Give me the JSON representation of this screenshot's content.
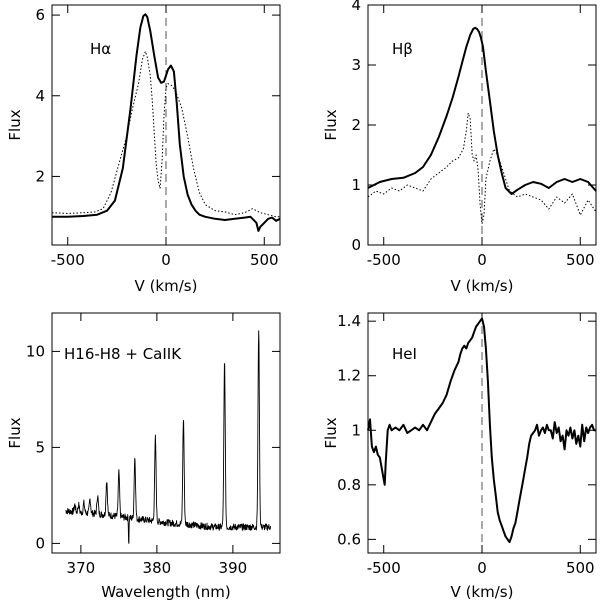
{
  "chart_data": [
    {
      "id": "halpha",
      "type": "line",
      "title": "Hα",
      "xlabel": "V (km/s)",
      "ylabel": "Flux",
      "xlim": [
        -580,
        580
      ],
      "ylim": [
        0.3,
        6.25
      ],
      "xticks": [
        -500,
        0,
        500
      ],
      "yticks": [
        2,
        4,
        6
      ],
      "ytick_labels": [
        "2",
        "4",
        "6"
      ],
      "vline": 0,
      "series": [
        {
          "name": "solid",
          "style": "solid",
          "x": [
            -580,
            -500,
            -420,
            -350,
            -300,
            -260,
            -220,
            -180,
            -150,
            -130,
            -115,
            -105,
            -95,
            -80,
            -60,
            -40,
            -25,
            -10,
            0,
            10,
            25,
            40,
            55,
            70,
            90,
            110,
            130,
            150,
            170,
            200,
            250,
            300,
            350,
            400,
            430,
            460,
            470,
            480,
            490,
            500,
            520,
            540,
            560,
            580
          ],
          "y": [
            1.0,
            1.0,
            1.02,
            1.05,
            1.15,
            1.4,
            2.2,
            3.7,
            5.0,
            5.7,
            5.98,
            6.02,
            5.95,
            5.6,
            5.0,
            4.45,
            4.32,
            4.35,
            4.5,
            4.65,
            4.75,
            4.6,
            3.8,
            2.8,
            2.0,
            1.55,
            1.3,
            1.15,
            1.05,
            1.0,
            0.95,
            0.92,
            0.95,
            0.98,
            1.0,
            0.85,
            0.65,
            0.75,
            0.8,
            0.85,
            0.95,
            0.98,
            0.9,
            0.95
          ]
        },
        {
          "name": "dotted",
          "style": "dotted",
          "x": [
            -580,
            -500,
            -420,
            -360,
            -320,
            -280,
            -240,
            -200,
            -170,
            -140,
            -120,
            -105,
            -95,
            -80,
            -70,
            -60,
            -50,
            -40,
            -30,
            -20,
            -10,
            0,
            10,
            30,
            50,
            80,
            110,
            140,
            170,
            200,
            250,
            300,
            350,
            400,
            440,
            480,
            520,
            560,
            580
          ],
          "y": [
            1.1,
            1.08,
            1.1,
            1.12,
            1.2,
            1.6,
            2.3,
            3.0,
            3.7,
            4.3,
            4.9,
            5.1,
            4.95,
            4.5,
            3.9,
            3.1,
            2.3,
            1.9,
            1.7,
            2.4,
            3.5,
            4.2,
            4.3,
            4.25,
            4.1,
            3.7,
            3.0,
            2.2,
            1.6,
            1.3,
            1.15,
            1.12,
            1.05,
            1.1,
            1.2,
            1.1,
            1.05,
            1.0,
            1.0
          ]
        }
      ]
    },
    {
      "id": "hbeta",
      "type": "line",
      "title": "Hβ",
      "xlabel": "V (km/s)",
      "ylabel": "Flux",
      "xlim": [
        -580,
        580
      ],
      "ylim": [
        0,
        4
      ],
      "xticks": [
        -500,
        0,
        500
      ],
      "yticks": [
        0,
        1,
        2,
        3,
        4
      ],
      "ytick_labels": [
        "0",
        "1",
        "2",
        "3",
        "4"
      ],
      "vline": 0,
      "series": [
        {
          "name": "solid",
          "style": "solid",
          "x": [
            -580,
            -520,
            -460,
            -400,
            -340,
            -300,
            -260,
            -220,
            -180,
            -150,
            -120,
            -100,
            -80,
            -60,
            -45,
            -35,
            -25,
            -15,
            -5,
            5,
            20,
            40,
            60,
            80,
            100,
            120,
            150,
            180,
            220,
            260,
            300,
            340,
            380,
            420,
            460,
            500,
            540,
            580
          ],
          "y": [
            0.95,
            1.05,
            1.1,
            1.12,
            1.2,
            1.3,
            1.5,
            1.8,
            2.15,
            2.45,
            2.8,
            3.05,
            3.3,
            3.5,
            3.6,
            3.62,
            3.6,
            3.55,
            3.45,
            3.3,
            2.9,
            2.4,
            1.9,
            1.5,
            1.2,
            0.95,
            0.85,
            0.92,
            1.0,
            1.05,
            1.02,
            0.95,
            1.05,
            1.1,
            1.05,
            1.1,
            1.05,
            0.9
          ]
        },
        {
          "name": "dotted",
          "style": "dotted",
          "x": [
            -580,
            -540,
            -500,
            -460,
            -420,
            -380,
            -340,
            -300,
            -260,
            -220,
            -180,
            -150,
            -120,
            -95,
            -80,
            -70,
            -60,
            -50,
            -40,
            -30,
            -20,
            -10,
            0,
            10,
            20,
            40,
            60,
            80,
            100,
            140,
            180,
            220,
            260,
            300,
            340,
            380,
            420,
            460,
            500,
            540,
            580
          ],
          "y": [
            0.8,
            0.9,
            0.85,
            0.95,
            0.9,
            1.0,
            0.95,
            0.9,
            1.1,
            1.2,
            1.3,
            1.4,
            1.45,
            1.6,
            1.9,
            2.2,
            2.1,
            1.5,
            1.4,
            1.5,
            1.25,
            0.7,
            0.35,
            0.5,
            1.1,
            1.4,
            1.6,
            1.5,
            1.3,
            0.9,
            0.8,
            0.85,
            0.8,
            0.75,
            0.6,
            0.8,
            0.7,
            0.85,
            0.5,
            0.75,
            0.55
          ]
        }
      ]
    },
    {
      "id": "balmer",
      "type": "line",
      "title": "H16-H8 + CaIIK",
      "xlabel": "Wavelength (nm)",
      "ylabel": "Flux",
      "xlim": [
        366.2,
        396.2
      ],
      "ylim": [
        -0.5,
        12
      ],
      "xticks": [
        370,
        380,
        390
      ],
      "yticks": [
        0,
        5,
        10
      ],
      "ytick_labels": [
        "0",
        "5",
        "10"
      ],
      "continuum_x": [
        368,
        370,
        372,
        374,
        376,
        378,
        380,
        382,
        384,
        386,
        388,
        390,
        392,
        395
      ],
      "continuum_y": [
        1.7,
        1.6,
        1.55,
        1.45,
        1.35,
        1.25,
        1.15,
        1.05,
        1.0,
        0.9,
        0.85,
        0.85,
        0.85,
        0.85
      ],
      "lines_nm": [
        369.2,
        369.7,
        370.4,
        371.2,
        372.2,
        373.4,
        375.0,
        377.1,
        379.8,
        383.5,
        388.9,
        393.4
      ],
      "lines_peak": [
        2.0,
        2.0,
        2.1,
        2.3,
        2.5,
        3.3,
        3.7,
        4.5,
        5.5,
        6.5,
        9.5,
        11.2
      ],
      "absorption_nm": 376.3,
      "absorption_min": -0.1
    },
    {
      "id": "hei",
      "type": "line",
      "title": "HeI",
      "xlabel": "V (km/s)",
      "ylabel": "Flux",
      "xlim": [
        -580,
        580
      ],
      "ylim": [
        0.55,
        1.43
      ],
      "xticks": [
        -500,
        0,
        500
      ],
      "yticks": [
        0.6,
        0.8,
        1.0,
        1.2,
        1.4
      ],
      "ytick_labels": [
        "0.6",
        "0.8",
        "1",
        "1.2",
        "1.4"
      ],
      "vline": 0,
      "series": [
        {
          "name": "solid",
          "style": "solid",
          "x": [
            -580,
            -570,
            -560,
            -550,
            -540,
            -530,
            -520,
            -510,
            -500,
            -495,
            -490,
            -480,
            -470,
            -460,
            -440,
            -420,
            -400,
            -380,
            -360,
            -340,
            -320,
            -300,
            -280,
            -260,
            -240,
            -220,
            -200,
            -180,
            -160,
            -140,
            -120,
            -110,
            -100,
            -90,
            -80,
            -70,
            -60,
            -50,
            -40,
            -30,
            -20,
            -10,
            0,
            10,
            20,
            30,
            40,
            50,
            60,
            70,
            80,
            90,
            100,
            110,
            120,
            130,
            140,
            150,
            160,
            170,
            180,
            190,
            200,
            210,
            220,
            230,
            240,
            250,
            260,
            270,
            280,
            290,
            300,
            310,
            320,
            330,
            340,
            350,
            360,
            370,
            380,
            390,
            400,
            410,
            420,
            430,
            440,
            450,
            460,
            470,
            480,
            490,
            500,
            510,
            520,
            530,
            540,
            550,
            560,
            570,
            580
          ],
          "y": [
            1.0,
            1.04,
            0.94,
            0.92,
            0.94,
            0.91,
            0.9,
            0.86,
            0.82,
            0.8,
            0.88,
            1.0,
            1.02,
            1.0,
            1.01,
            1.0,
            1.02,
            0.99,
            1.0,
            1.01,
            1.0,
            1.02,
            1.0,
            1.03,
            1.06,
            1.08,
            1.1,
            1.13,
            1.18,
            1.22,
            1.25,
            1.28,
            1.3,
            1.31,
            1.3,
            1.32,
            1.33,
            1.34,
            1.36,
            1.38,
            1.39,
            1.4,
            1.41,
            1.38,
            1.3,
            1.18,
            1.02,
            0.9,
            0.82,
            0.76,
            0.7,
            0.67,
            0.65,
            0.63,
            0.61,
            0.6,
            0.59,
            0.61,
            0.64,
            0.66,
            0.7,
            0.74,
            0.78,
            0.82,
            0.86,
            0.9,
            0.95,
            0.98,
            0.99,
            1.0,
            1.02,
            0.98,
            1.0,
            1.01,
            0.99,
            1.02,
            1.0,
            1.0,
            0.97,
            1.03,
            0.99,
            1.01,
            0.96,
            0.98,
            0.93,
            1.0,
            0.98,
            1.01,
            0.97,
            1.0,
            0.95,
            0.98,
            0.94,
            1.02,
            0.96,
            1.01,
            0.99,
            1.01,
            1.02,
            1.0,
            1.0
          ]
        }
      ]
    }
  ]
}
